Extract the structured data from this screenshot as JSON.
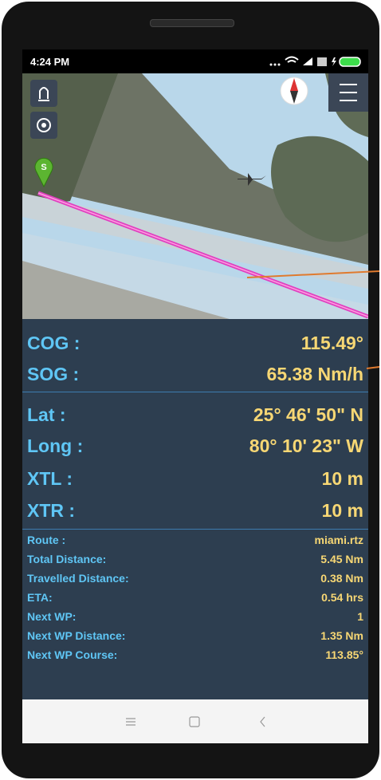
{
  "status_bar": {
    "time": "4:24 PM"
  },
  "map": {
    "marker_label": "S"
  },
  "main_readings": [
    {
      "label": "COG :",
      "value": "115.49°"
    },
    {
      "label": "SOG :",
      "value": "65.38 Nm/h"
    },
    {
      "label": "Lat :",
      "value": "25° 46' 50\" N"
    },
    {
      "label": "Long :",
      "value": "80° 10' 23\" W"
    },
    {
      "label": "XTL :",
      "value": "10 m"
    },
    {
      "label": "XTR :",
      "value": "10 m"
    }
  ],
  "route_info": [
    {
      "label": "Route :",
      "value": "miami.rtz"
    },
    {
      "label": "Total Distance:",
      "value": "5.45 Nm"
    },
    {
      "label": "Travelled Distance:",
      "value": "0.38 Nm"
    },
    {
      "label": "ETA:",
      "value": "0.54 hrs"
    },
    {
      "label": "Next WP:",
      "value": "1"
    },
    {
      "label": "Next WP Distance:",
      "value": "1.35 Nm"
    },
    {
      "label": "Next WP Course:",
      "value": "113.85°"
    }
  ]
}
